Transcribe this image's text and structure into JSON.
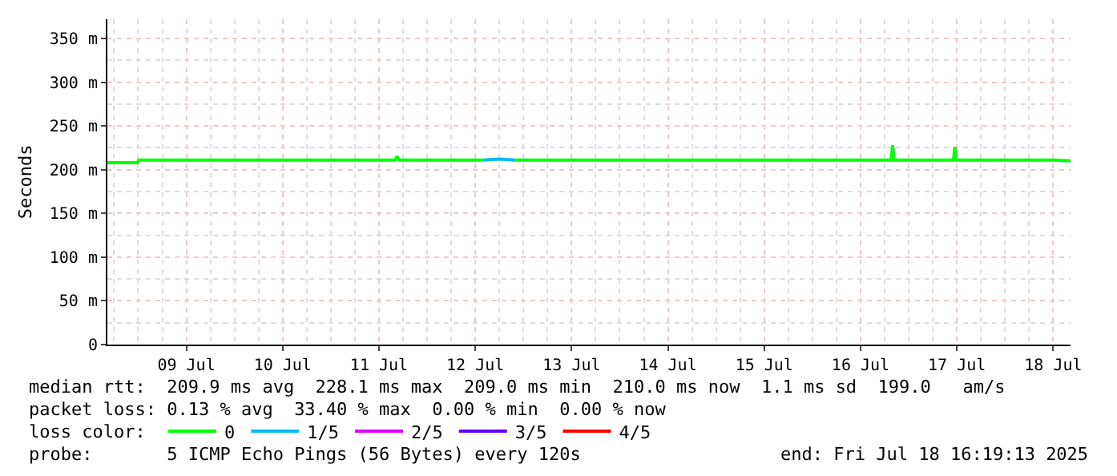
{
  "chart_data": {
    "type": "line",
    "ylabel": "Seconds",
    "x": [
      "2025-07-08T16:19",
      "2025-07-08T23:50",
      "2025-07-09T00:10",
      "2025-07-09T06:00",
      "2025-07-10T12:00",
      "2025-07-11T12:00",
      "2025-07-11T16:00",
      "2025-07-11T16:30",
      "2025-07-11T17:00",
      "2025-07-12T12:00",
      "2025-07-12T14:00",
      "2025-07-12T18:00",
      "2025-07-12T22:00",
      "2025-07-13T12:00",
      "2025-07-14T12:00",
      "2025-07-15T12:00",
      "2025-07-16T12:00",
      "2025-07-16T19:40",
      "2025-07-16T20:00",
      "2025-07-16T20:20",
      "2025-07-17T11:10",
      "2025-07-17T11:30",
      "2025-07-17T11:50",
      "2025-07-18T12:00",
      "2025-07-18T16:19"
    ],
    "series": [
      {
        "name": "0",
        "color": "#00ff00",
        "values": [
          208,
          208,
          211,
          211,
          211,
          211,
          211,
          215,
          211,
          211,
          211,
          null,
          211,
          211,
          211,
          211,
          211,
          211,
          228,
          211,
          211,
          226,
          211,
          211,
          210
        ]
      },
      {
        "name": "1/5",
        "color": "#00bbff",
        "values": [
          null,
          null,
          null,
          null,
          null,
          null,
          null,
          null,
          null,
          null,
          211,
          212,
          211,
          null,
          null,
          null,
          null,
          null,
          null,
          null,
          null,
          null,
          null,
          null,
          null
        ]
      },
      {
        "name": "2/5",
        "color": "#dd00ff",
        "values": [
          null,
          null,
          null,
          null,
          null,
          null,
          null,
          null,
          null,
          null,
          null,
          null,
          null,
          null,
          null,
          null,
          null,
          null,
          null,
          null,
          null,
          null,
          null,
          null,
          null
        ]
      },
      {
        "name": "3/5",
        "color": "#6600ff",
        "values": [
          null,
          null,
          null,
          null,
          null,
          null,
          null,
          null,
          null,
          null,
          null,
          null,
          null,
          null,
          null,
          null,
          null,
          null,
          null,
          null,
          null,
          null,
          null,
          null,
          null
        ]
      },
      {
        "name": "4/5",
        "color": "#ff0000",
        "values": [
          null,
          null,
          null,
          null,
          null,
          null,
          null,
          null,
          null,
          null,
          null,
          null,
          null,
          null,
          null,
          null,
          null,
          null,
          null,
          null,
          null,
          null,
          null,
          null,
          null
        ]
      }
    ],
    "xlim": [
      "2025-07-08T16:19",
      "2025-07-18T16:19"
    ],
    "xticks": [
      {
        "value": "2025-07-09T12:00",
        "label": "09 Jul"
      },
      {
        "value": "2025-07-10T12:00",
        "label": "10 Jul"
      },
      {
        "value": "2025-07-11T12:00",
        "label": "11 Jul"
      },
      {
        "value": "2025-07-12T12:00",
        "label": "12 Jul"
      },
      {
        "value": "2025-07-13T12:00",
        "label": "13 Jul"
      },
      {
        "value": "2025-07-14T12:00",
        "label": "14 Jul"
      },
      {
        "value": "2025-07-15T12:00",
        "label": "15 Jul"
      },
      {
        "value": "2025-07-16T12:00",
        "label": "16 Jul"
      },
      {
        "value": "2025-07-17T12:00",
        "label": "17 Jul"
      },
      {
        "value": "2025-07-18T12:00",
        "label": "18 Jul"
      }
    ],
    "ylim": [
      0,
      372
    ],
    "yticks": [
      0,
      {
        "value": 50,
        "label": "50 m"
      },
      {
        "value": 100,
        "label": "100 m"
      },
      {
        "value": 150,
        "label": "150 m"
      },
      {
        "value": 200,
        "label": "200 m"
      },
      {
        "value": 250,
        "label": "250 m"
      },
      {
        "value": 300,
        "label": "300 m"
      },
      {
        "value": 350,
        "label": "350 m"
      }
    ],
    "grid": true,
    "legend": "bottom left",
    "marker": "none",
    "line_style": "solid",
    "annotations": [
      "median rtt:  209.9 ms avg  228.1 ms max  209.0 ms min  210.0 ms now  1.1 ms sd  199.0   am/s",
      "packet loss: 0.13 % avg  33.40 % max  0.00 % min  0.00 % now",
      "loss color:",
      "probe:       5 ICMP Echo Pings (56 Bytes) every 120s",
      "end: Fri Jul 18 16:19:13 2025"
    ]
  }
}
